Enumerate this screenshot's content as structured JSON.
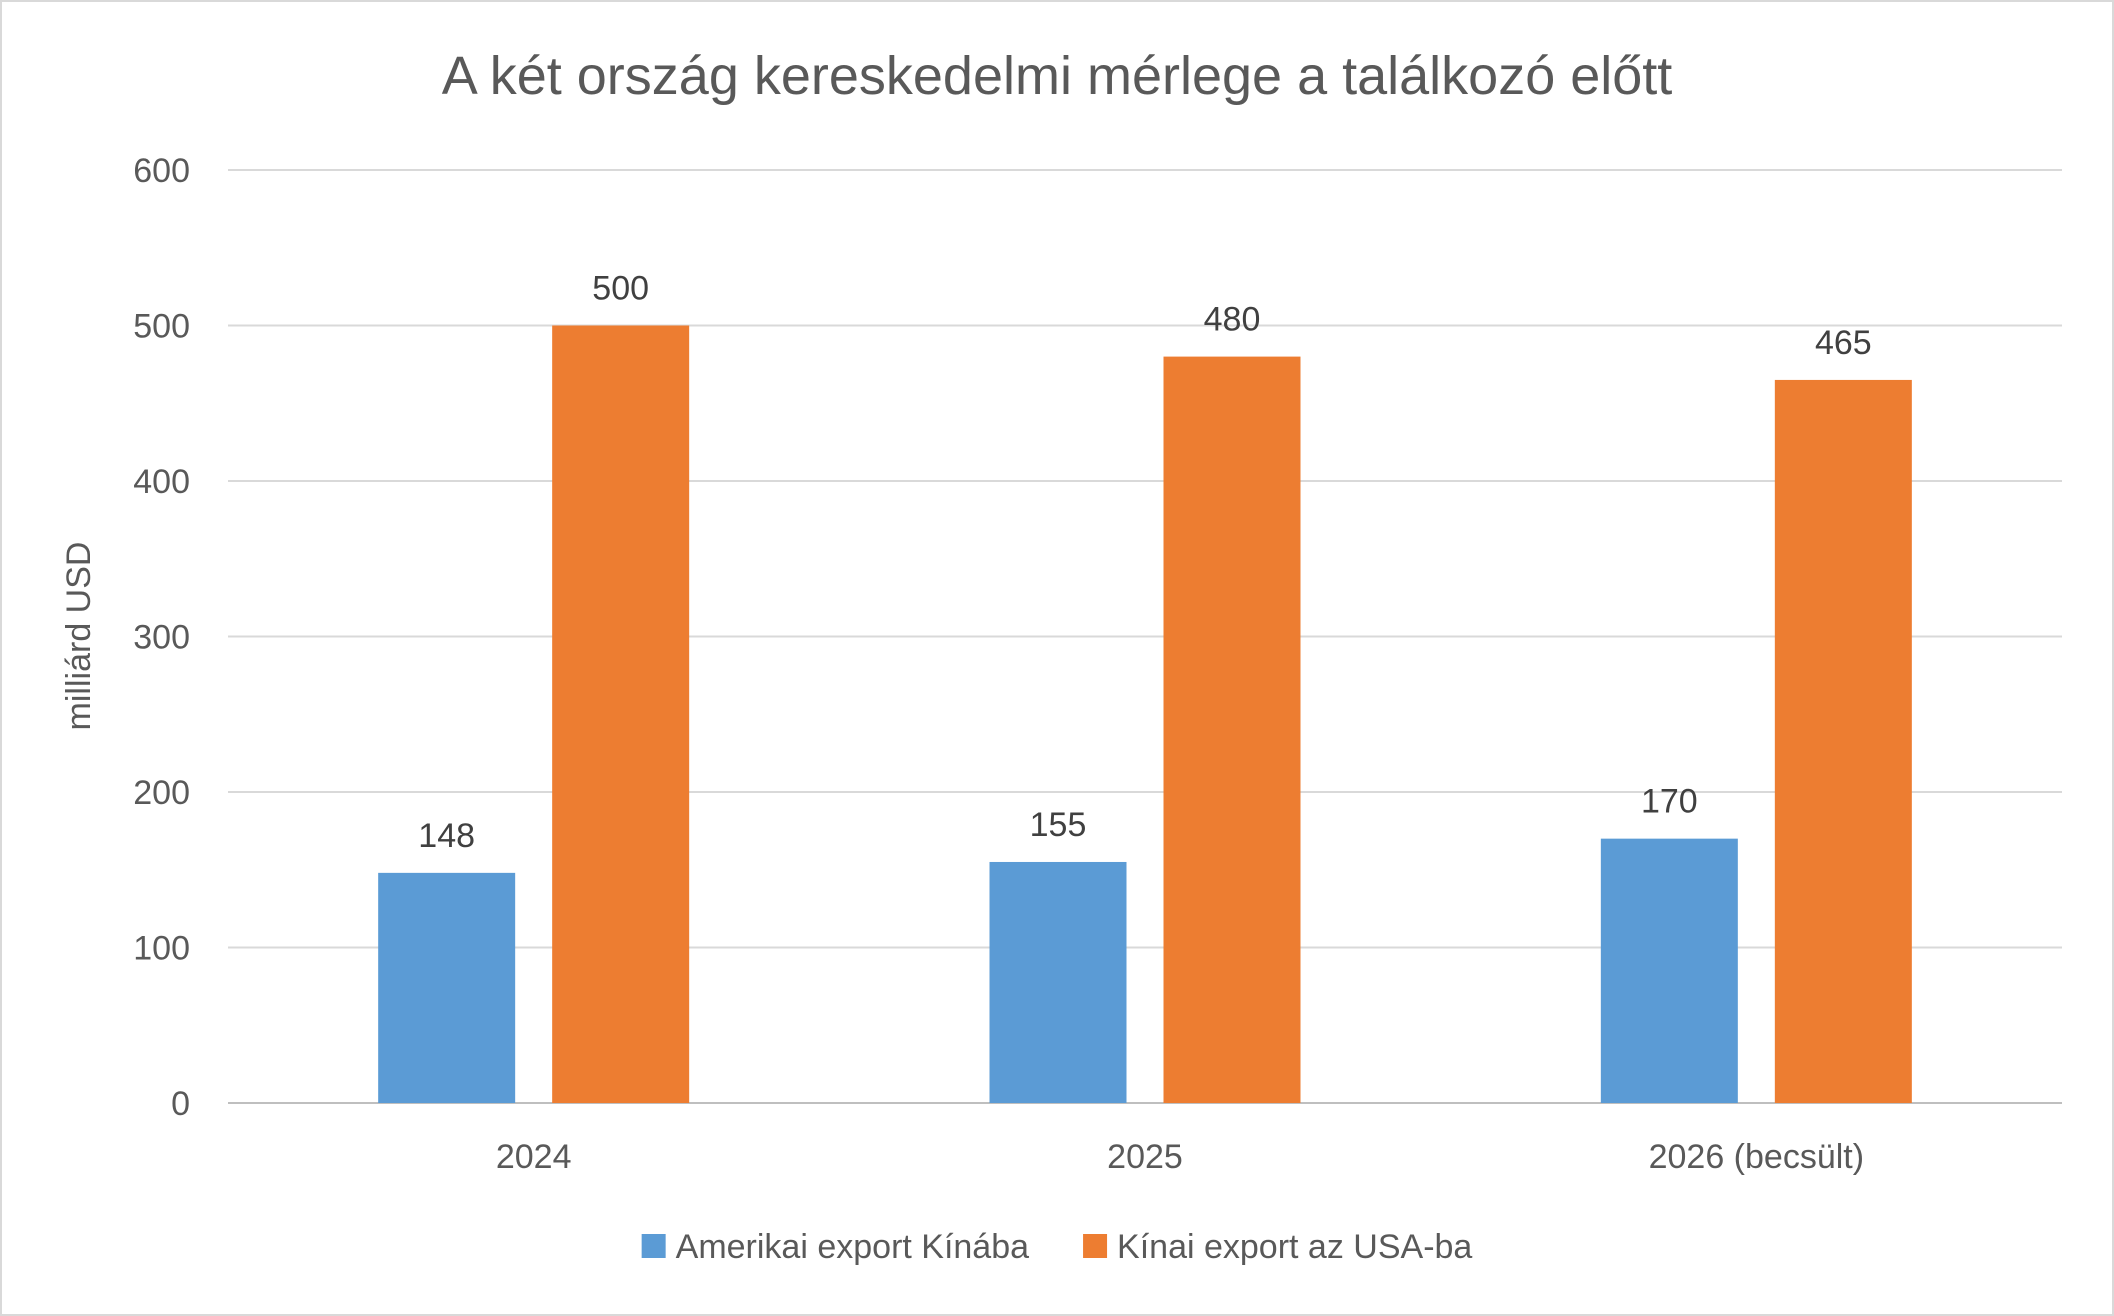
{
  "chart_data": {
    "type": "bar",
    "title": "A két ország kereskedelmi mérlege a találkozó előtt",
    "xlabel": "",
    "ylabel": "milliárd USD",
    "categories": [
      "2024",
      "2025",
      "2026 (becsült)"
    ],
    "series": [
      {
        "name": "Amerikai export Kínába",
        "values": [
          148,
          155,
          170
        ],
        "color": "#5b9bd5"
      },
      {
        "name": "Kínai export az USA-ba",
        "values": [
          500,
          480,
          465
        ],
        "color": "#ed7d31"
      }
    ],
    "ylim": [
      0,
      600
    ],
    "yticks": [
      0,
      100,
      200,
      300,
      400,
      500,
      600
    ],
    "grid": true,
    "gridColor": "#d9d9d9",
    "legend": "bottom",
    "dataLabels": true
  }
}
